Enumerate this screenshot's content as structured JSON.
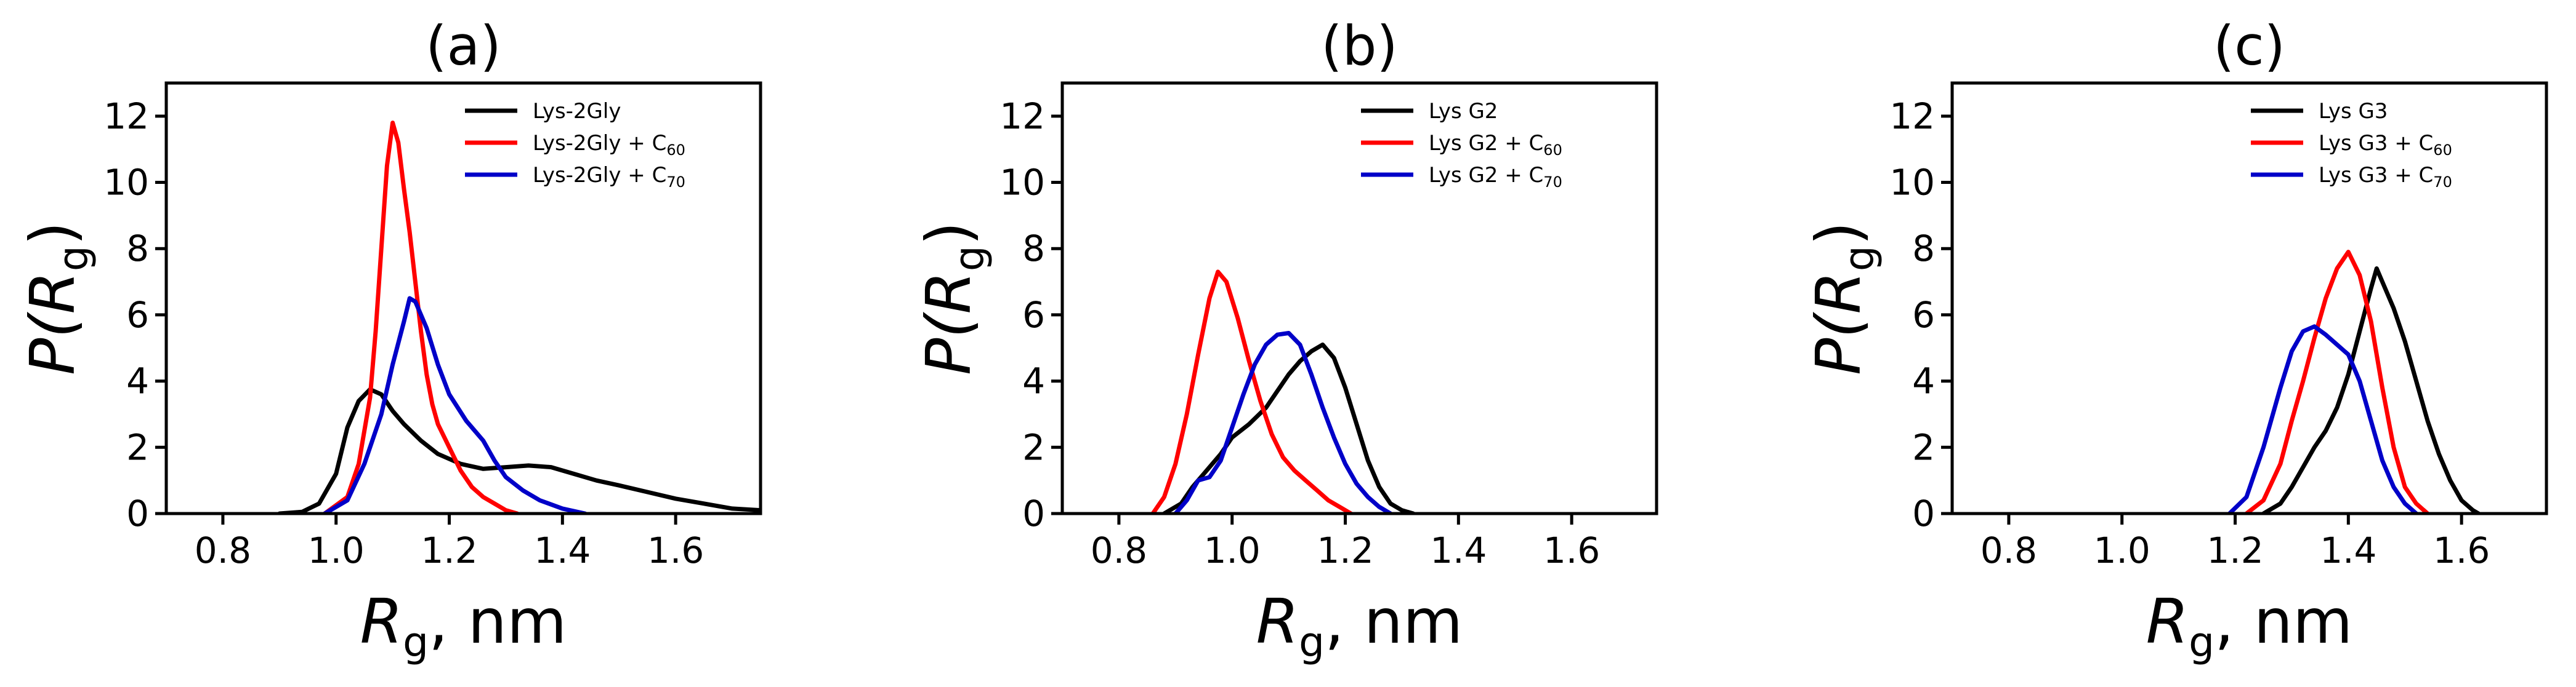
{
  "chart_data": [
    {
      "type": "line",
      "title": "(a)",
      "xlabel": {
        "main": "R",
        "sub": "g",
        "rest": ", nm"
      },
      "ylabel": {
        "main": "P(R",
        "sub": "g",
        "rest": ")"
      },
      "xlim": [
        0.7,
        1.75
      ],
      "ylim": [
        0,
        13
      ],
      "xticks": [
        0.8,
        1.0,
        1.2,
        1.4,
        1.6
      ],
      "xtick_labels": [
        "0.8",
        "1.0",
        "1.2",
        "1.4",
        "1.6"
      ],
      "yticks": [
        0,
        2,
        4,
        6,
        8,
        10,
        12
      ],
      "ytick_labels": [
        "0",
        "2",
        "4",
        "6",
        "8",
        "10",
        "12"
      ],
      "legend": "top-right",
      "series": [
        {
          "name": "Lys-2Gly",
          "label_main": "Lys-2Gly",
          "label_sub": "",
          "color": "#000000",
          "points": [
            [
              0.9,
              0
            ],
            [
              0.94,
              0.05
            ],
            [
              0.97,
              0.3
            ],
            [
              1.0,
              1.2
            ],
            [
              1.02,
              2.6
            ],
            [
              1.04,
              3.4
            ],
            [
              1.06,
              3.75
            ],
            [
              1.08,
              3.6
            ],
            [
              1.1,
              3.1
            ],
            [
              1.12,
              2.7
            ],
            [
              1.15,
              2.2
            ],
            [
              1.18,
              1.8
            ],
            [
              1.22,
              1.5
            ],
            [
              1.26,
              1.35
            ],
            [
              1.3,
              1.4
            ],
            [
              1.34,
              1.45
            ],
            [
              1.38,
              1.4
            ],
            [
              1.42,
              1.2
            ],
            [
              1.46,
              1.0
            ],
            [
              1.5,
              0.85
            ],
            [
              1.55,
              0.65
            ],
            [
              1.6,
              0.45
            ],
            [
              1.65,
              0.3
            ],
            [
              1.7,
              0.15
            ],
            [
              1.75,
              0.1
            ]
          ]
        },
        {
          "name": "Lys-2Gly + C60",
          "label_main": "Lys-2Gly + C",
          "label_sub": "60",
          "color": "#ff0000",
          "points": [
            [
              0.98,
              0
            ],
            [
              1.02,
              0.5
            ],
            [
              1.04,
              1.5
            ],
            [
              1.06,
              3.5
            ],
            [
              1.07,
              5.5
            ],
            [
              1.08,
              8.0
            ],
            [
              1.09,
              10.5
            ],
            [
              1.1,
              11.8
            ],
            [
              1.11,
              11.2
            ],
            [
              1.12,
              9.8
            ],
            [
              1.13,
              8.5
            ],
            [
              1.14,
              7.0
            ],
            [
              1.15,
              5.5
            ],
            [
              1.16,
              4.2
            ],
            [
              1.17,
              3.3
            ],
            [
              1.18,
              2.7
            ],
            [
              1.2,
              2.0
            ],
            [
              1.22,
              1.3
            ],
            [
              1.24,
              0.8
            ],
            [
              1.26,
              0.5
            ],
            [
              1.28,
              0.3
            ],
            [
              1.3,
              0.1
            ],
            [
              1.32,
              0
            ]
          ]
        },
        {
          "name": "Lys-2Gly + C70",
          "label_main": "Lys-2Gly + C",
          "label_sub": "70",
          "color": "#0000c8",
          "points": [
            [
              0.98,
              0
            ],
            [
              1.02,
              0.4
            ],
            [
              1.05,
              1.5
            ],
            [
              1.08,
              3.0
            ],
            [
              1.1,
              4.5
            ],
            [
              1.12,
              5.8
            ],
            [
              1.13,
              6.5
            ],
            [
              1.14,
              6.4
            ],
            [
              1.16,
              5.6
            ],
            [
              1.18,
              4.5
            ],
            [
              1.2,
              3.6
            ],
            [
              1.23,
              2.8
            ],
            [
              1.26,
              2.2
            ],
            [
              1.28,
              1.6
            ],
            [
              1.3,
              1.1
            ],
            [
              1.33,
              0.7
            ],
            [
              1.36,
              0.4
            ],
            [
              1.4,
              0.15
            ],
            [
              1.44,
              0
            ]
          ]
        }
      ]
    },
    {
      "type": "line",
      "title": "(b)",
      "xlabel": {
        "main": "R",
        "sub": "g",
        "rest": ", nm"
      },
      "ylabel": {
        "main": "P(R",
        "sub": "g",
        "rest": ")"
      },
      "xlim": [
        0.7,
        1.75
      ],
      "ylim": [
        0,
        13
      ],
      "xticks": [
        0.8,
        1.0,
        1.2,
        1.4,
        1.6
      ],
      "xtick_labels": [
        "0.8",
        "1.0",
        "1.2",
        "1.4",
        "1.6"
      ],
      "yticks": [
        0,
        2,
        4,
        6,
        8,
        10,
        12
      ],
      "ytick_labels": [
        "0",
        "2",
        "4",
        "6",
        "8",
        "10",
        "12"
      ],
      "legend": "top-right",
      "series": [
        {
          "name": "Lys G2",
          "label_main": "Lys G2",
          "label_sub": "",
          "color": "#000000",
          "points": [
            [
              0.88,
              0
            ],
            [
              0.91,
              0.3
            ],
            [
              0.93,
              0.8
            ],
            [
              0.95,
              1.2
            ],
            [
              0.98,
              1.8
            ],
            [
              1.0,
              2.3
            ],
            [
              1.03,
              2.7
            ],
            [
              1.06,
              3.2
            ],
            [
              1.08,
              3.7
            ],
            [
              1.1,
              4.2
            ],
            [
              1.12,
              4.6
            ],
            [
              1.14,
              4.9
            ],
            [
              1.16,
              5.1
            ],
            [
              1.18,
              4.7
            ],
            [
              1.2,
              3.8
            ],
            [
              1.22,
              2.7
            ],
            [
              1.24,
              1.6
            ],
            [
              1.26,
              0.8
            ],
            [
              1.28,
              0.3
            ],
            [
              1.3,
              0.1
            ],
            [
              1.32,
              0
            ]
          ]
        },
        {
          "name": "Lys G2 + C60",
          "label_main": "Lys G2 + C",
          "label_sub": "60",
          "color": "#ff0000",
          "points": [
            [
              0.86,
              0
            ],
            [
              0.88,
              0.5
            ],
            [
              0.9,
              1.5
            ],
            [
              0.92,
              3.0
            ],
            [
              0.94,
              4.8
            ],
            [
              0.96,
              6.5
            ],
            [
              0.975,
              7.3
            ],
            [
              0.99,
              7.0
            ],
            [
              1.01,
              5.9
            ],
            [
              1.03,
              4.6
            ],
            [
              1.05,
              3.4
            ],
            [
              1.07,
              2.4
            ],
            [
              1.09,
              1.7
            ],
            [
              1.11,
              1.3
            ],
            [
              1.13,
              1.0
            ],
            [
              1.15,
              0.7
            ],
            [
              1.17,
              0.4
            ],
            [
              1.19,
              0.2
            ],
            [
              1.21,
              0
            ]
          ]
        },
        {
          "name": "Lys G2 + C70",
          "label_main": "Lys G2 + C",
          "label_sub": "70",
          "color": "#0000c8",
          "points": [
            [
              0.9,
              0
            ],
            [
              0.92,
              0.4
            ],
            [
              0.94,
              1.0
            ],
            [
              0.96,
              1.1
            ],
            [
              0.98,
              1.6
            ],
            [
              1.0,
              2.6
            ],
            [
              1.02,
              3.6
            ],
            [
              1.04,
              4.5
            ],
            [
              1.06,
              5.1
            ],
            [
              1.08,
              5.4
            ],
            [
              1.1,
              5.45
            ],
            [
              1.12,
              5.1
            ],
            [
              1.14,
              4.2
            ],
            [
              1.16,
              3.2
            ],
            [
              1.18,
              2.3
            ],
            [
              1.2,
              1.5
            ],
            [
              1.22,
              0.9
            ],
            [
              1.24,
              0.5
            ],
            [
              1.26,
              0.2
            ],
            [
              1.28,
              0
            ]
          ]
        }
      ]
    },
    {
      "type": "line",
      "title": "(c)",
      "xlabel": {
        "main": "R",
        "sub": "g",
        "rest": ", nm"
      },
      "ylabel": {
        "main": "P(R",
        "sub": "g",
        "rest": ")"
      },
      "xlim": [
        0.7,
        1.75
      ],
      "ylim": [
        0,
        13
      ],
      "xticks": [
        0.8,
        1.0,
        1.2,
        1.4,
        1.6
      ],
      "xtick_labels": [
        "0.8",
        "1.0",
        "1.2",
        "1.4",
        "1.6"
      ],
      "yticks": [
        0,
        2,
        4,
        6,
        8,
        10,
        12
      ],
      "ytick_labels": [
        "0",
        "2",
        "4",
        "6",
        "8",
        "10",
        "12"
      ],
      "legend": "top-right",
      "series": [
        {
          "name": "Lys G3",
          "label_main": "Lys G3",
          "label_sub": "",
          "color": "#000000",
          "points": [
            [
              1.25,
              0
            ],
            [
              1.28,
              0.3
            ],
            [
              1.3,
              0.8
            ],
            [
              1.32,
              1.4
            ],
            [
              1.34,
              2.0
            ],
            [
              1.36,
              2.5
            ],
            [
              1.38,
              3.2
            ],
            [
              1.4,
              4.2
            ],
            [
              1.42,
              5.5
            ],
            [
              1.44,
              6.8
            ],
            [
              1.45,
              7.4
            ],
            [
              1.46,
              7.0
            ],
            [
              1.48,
              6.2
            ],
            [
              1.5,
              5.2
            ],
            [
              1.52,
              4.0
            ],
            [
              1.54,
              2.8
            ],
            [
              1.56,
              1.8
            ],
            [
              1.58,
              1.0
            ],
            [
              1.6,
              0.4
            ],
            [
              1.62,
              0.1
            ],
            [
              1.63,
              0
            ]
          ]
        },
        {
          "name": "Lys G3 + C60",
          "label_main": "Lys G3 + C",
          "label_sub": "60",
          "color": "#ff0000",
          "points": [
            [
              1.22,
              0
            ],
            [
              1.25,
              0.4
            ],
            [
              1.28,
              1.5
            ],
            [
              1.3,
              2.8
            ],
            [
              1.32,
              4.0
            ],
            [
              1.34,
              5.3
            ],
            [
              1.36,
              6.5
            ],
            [
              1.38,
              7.4
            ],
            [
              1.4,
              7.9
            ],
            [
              1.42,
              7.2
            ],
            [
              1.44,
              5.8
            ],
            [
              1.46,
              3.8
            ],
            [
              1.48,
              2.0
            ],
            [
              1.5,
              0.8
            ],
            [
              1.52,
              0.3
            ],
            [
              1.54,
              0
            ]
          ]
        },
        {
          "name": "Lys G3 + C70",
          "label_main": "Lys G3 + C",
          "label_sub": "70",
          "color": "#0000c8",
          "points": [
            [
              1.19,
              0
            ],
            [
              1.22,
              0.5
            ],
            [
              1.25,
              2.0
            ],
            [
              1.28,
              3.8
            ],
            [
              1.3,
              4.9
            ],
            [
              1.32,
              5.5
            ],
            [
              1.34,
              5.65
            ],
            [
              1.36,
              5.4
            ],
            [
              1.38,
              5.1
            ],
            [
              1.4,
              4.8
            ],
            [
              1.42,
              4.0
            ],
            [
              1.44,
              2.8
            ],
            [
              1.46,
              1.6
            ],
            [
              1.48,
              0.8
            ],
            [
              1.5,
              0.3
            ],
            [
              1.52,
              0
            ]
          ]
        }
      ]
    }
  ]
}
